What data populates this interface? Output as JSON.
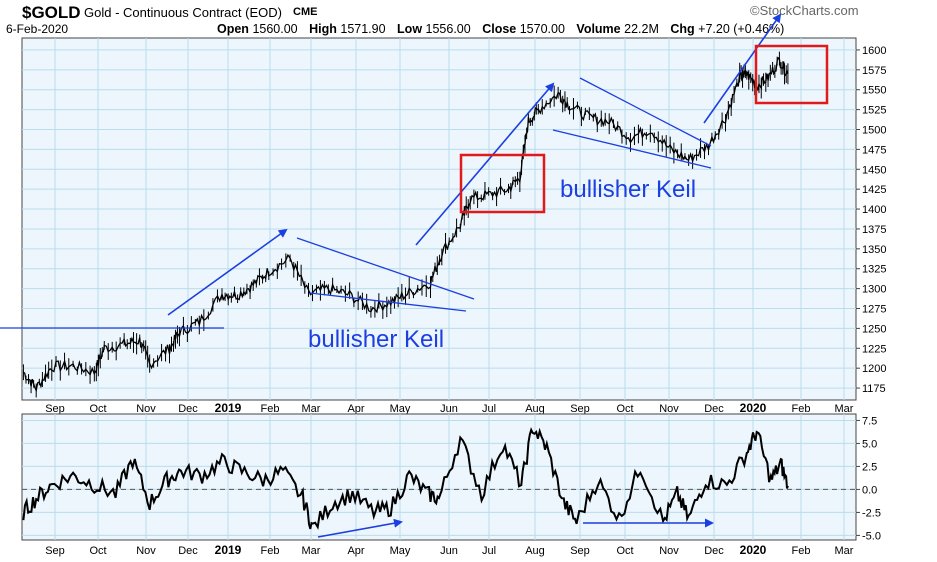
{
  "header": {
    "symbol": "$GOLD",
    "name": "Gold - Continuous Contract (EOD)",
    "exchange": "CME",
    "date": "6-Feb-2020",
    "open_label": "Open",
    "open": "1560.00",
    "high_label": "High",
    "high": "1571.90",
    "low_label": "Low",
    "low": "1556.00",
    "close_label": "Close",
    "close": "1570.00",
    "volume_label": "Volume",
    "volume": "22.2M",
    "chg_label": "Chg",
    "chg": "+7.20 (+0.46%)",
    "brand": "©StockCharts.com"
  },
  "annotations": {
    "keil_1": "bullisher Keil",
    "keil_2": "bullisher Keil"
  },
  "colors": {
    "plot_bg": "#edf6fc",
    "grid": "#b9dcef",
    "price": "#000000",
    "trend": "#1b3fe0",
    "box": "#e01a1a",
    "label": "#1b3fe0"
  },
  "chart_data": [
    {
      "type": "ohlc",
      "title": "$GOLD Gold - Continuous Contract (EOD) CME",
      "x_ticks": [
        "Sep",
        "Oct",
        "Nov",
        "Dec",
        "2019",
        "Feb",
        "Mar",
        "Apr",
        "May",
        "Jun",
        "Jul",
        "Aug",
        "Sep",
        "Oct",
        "Nov",
        "Dec",
        "2020",
        "Feb",
        "Mar"
      ],
      "y_ticks": [
        1175,
        1200,
        1225,
        1250,
        1275,
        1300,
        1325,
        1350,
        1375,
        1400,
        1425,
        1450,
        1475,
        1500,
        1525,
        1550,
        1575,
        1600
      ],
      "ylim": [
        1160,
        1615
      ],
      "xlim": [
        "2018-08-15",
        "2020-03-25"
      ],
      "series": [
        {
          "x": [
            "2018-08-16",
            "2018-08-25",
            "2018-09-05",
            "2018-09-20",
            "2018-10-05",
            "2018-10-12",
            "2018-10-26",
            "2018-11-06",
            "2018-11-13",
            "2018-11-27",
            "2018-12-04",
            "2018-12-18",
            "2019-01-03",
            "2019-01-14",
            "2019-01-25",
            "2019-02-05",
            "2019-02-20",
            "2019-03-05",
            "2019-03-19",
            "2019-04-03",
            "2019-04-18",
            "2019-05-02",
            "2019-05-15",
            "2019-05-30",
            "2019-06-07",
            "2019-06-20",
            "2019-06-27",
            "2019-07-10",
            "2019-07-24",
            "2019-08-01",
            "2019-08-07",
            "2019-08-14",
            "2019-08-28",
            "2019-09-05",
            "2019-09-19",
            "2019-10-03",
            "2019-10-18",
            "2019-11-01",
            "2019-11-15",
            "2019-11-28",
            "2019-12-12",
            "2019-12-24",
            "2020-01-03",
            "2020-01-08",
            "2020-01-15",
            "2020-01-23",
            "2020-01-31",
            "2020-02-06"
          ],
          "y": [
            1195,
            1175,
            1202,
            1203,
            1195,
            1225,
            1230,
            1235,
            1205,
            1225,
            1245,
            1258,
            1293,
            1292,
            1305,
            1322,
            1338,
            1293,
            1300,
            1292,
            1275,
            1283,
            1295,
            1308,
            1345,
            1380,
            1413,
            1418,
            1425,
            1440,
            1510,
            1525,
            1545,
            1530,
            1515,
            1510,
            1490,
            1500,
            1475,
            1462,
            1480,
            1515,
            1565,
            1570,
            1555,
            1565,
            1587,
            1570
          ]
        }
      ]
    },
    {
      "type": "line",
      "title": "",
      "x_ticks": [
        "Sep",
        "Oct",
        "Nov",
        "Dec",
        "2019",
        "Feb",
        "Mar",
        "Apr",
        "May",
        "Jun",
        "Jul",
        "Aug",
        "Sep",
        "Oct",
        "Nov",
        "Dec",
        "2020",
        "Feb",
        "Mar"
      ],
      "y_ticks": [
        "7.5",
        "5.0",
        "2.5",
        "0.0",
        "-2.5",
        "-5.0"
      ],
      "ylim": [
        -5.5,
        8.2
      ],
      "zero_line": true,
      "series": [
        {
          "x": [
            "2018-08-16",
            "2018-08-25",
            "2018-09-05",
            "2018-09-20",
            "2018-10-05",
            "2018-10-20",
            "2018-11-01",
            "2018-11-13",
            "2018-11-25",
            "2018-12-05",
            "2018-12-20",
            "2019-01-03",
            "2019-01-17",
            "2019-02-01",
            "2019-02-15",
            "2019-03-01",
            "2019-03-08",
            "2019-03-22",
            "2019-04-05",
            "2019-04-20",
            "2019-05-02",
            "2019-05-15",
            "2019-05-28",
            "2019-06-05",
            "2019-06-20",
            "2019-07-05",
            "2019-07-20",
            "2019-08-02",
            "2019-08-10",
            "2019-08-20",
            "2019-09-01",
            "2019-09-10",
            "2019-09-25",
            "2019-10-10",
            "2019-10-25",
            "2019-11-10",
            "2019-11-20",
            "2019-11-28",
            "2019-12-10",
            "2019-12-25",
            "2020-01-08",
            "2020-01-15",
            "2020-01-25",
            "2020-02-01",
            "2020-02-06"
          ],
          "y": [
            -2.5,
            -1.0,
            0.5,
            1.5,
            0.5,
            -0.5,
            3.2,
            -1.5,
            1.0,
            2.0,
            1.5,
            3.0,
            2.0,
            1.0,
            2.0,
            -1.0,
            -4.2,
            -1.5,
            -0.5,
            -2.5,
            -2.0,
            1.5,
            -0.5,
            -1.0,
            5.5,
            -0.5,
            5.0,
            0.5,
            6.8,
            4.5,
            -1.5,
            -3.5,
            1.0,
            -3.2,
            2.5,
            -3.5,
            -0.5,
            -3.2,
            1.0,
            0.5,
            4.0,
            6.3,
            1.0,
            2.8,
            0.4
          ]
        }
      ]
    }
  ]
}
